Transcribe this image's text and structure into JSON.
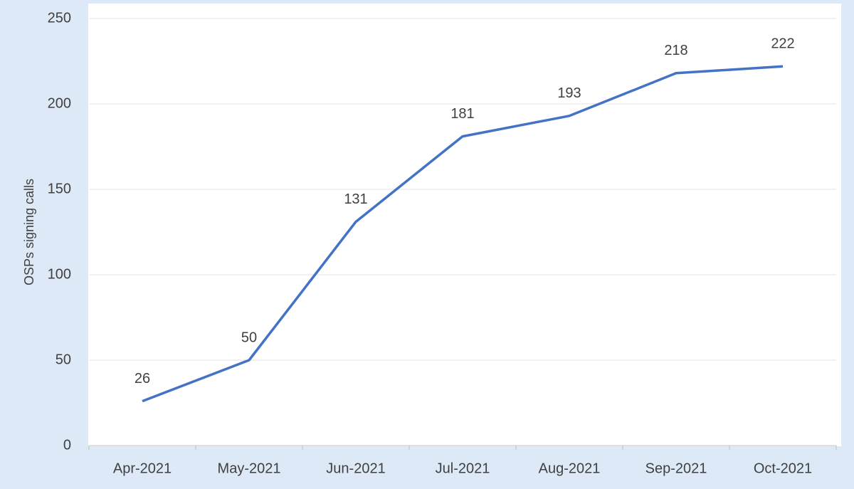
{
  "chart_data": {
    "type": "line",
    "y_label": "OSPs signing calls",
    "categories": [
      "Apr-2021",
      "May-2021",
      "Jun-2021",
      "Jul-2021",
      "Aug-2021",
      "Sep-2021",
      "Oct-2021"
    ],
    "values": [
      26,
      50,
      131,
      181,
      193,
      218,
      222
    ],
    "color": "#4472c4",
    "ylim": [
      0,
      250
    ],
    "yticks": [
      0,
      50,
      100,
      150,
      200,
      250
    ],
    "grid": true
  }
}
